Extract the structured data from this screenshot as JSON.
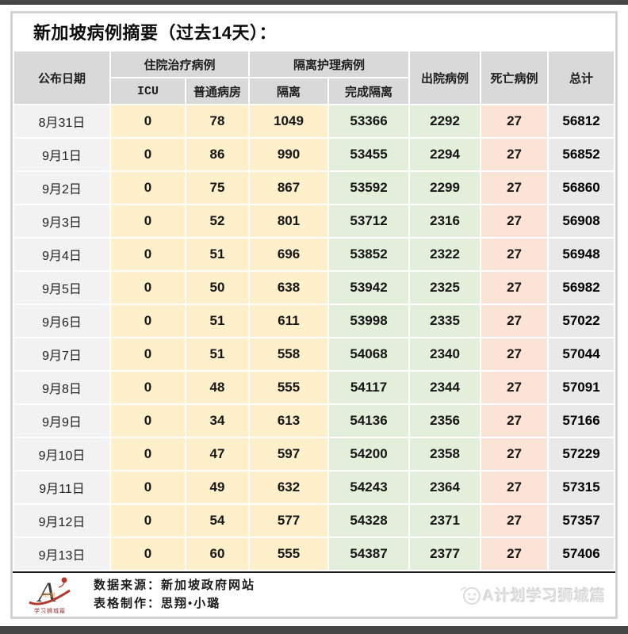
{
  "title": "新加坡病例摘要（过去14天）：",
  "colors": {
    "page_bar": "#454545",
    "frame_border": "#d4d4d4",
    "header_bg": "#d9d9d9",
    "date_bg": "#f2f2f2",
    "cell_yellow": "#fdf0ca",
    "cell_green": "#e4efdb",
    "cell_pink": "#fbe3d5",
    "total_bg": "#e9e9e9",
    "footer_divider": "#1a1a1a",
    "accent_red": "#b33a2e",
    "watermark_gray": "#dfdfdf"
  },
  "table": {
    "header": {
      "date": "公布日期",
      "hospitalized_group": "住院治疗病例",
      "isolation_group": "隔离护理病例",
      "icu": "ICU",
      "general_ward": "普通病房",
      "isolation": "隔离",
      "completed_isolation": "完成隔离",
      "discharged": "出院病例",
      "deaths": "死亡病例",
      "total": "总计"
    },
    "rows": [
      {
        "date": "8月31日",
        "values": [
          "0",
          "78",
          "1049",
          "53366",
          "2292",
          "27",
          "56812"
        ]
      },
      {
        "date": "9月1日",
        "values": [
          "0",
          "86",
          "990",
          "53455",
          "2294",
          "27",
          "56852"
        ]
      },
      {
        "date": "9月2日",
        "values": [
          "0",
          "75",
          "867",
          "53592",
          "2299",
          "27",
          "56860"
        ]
      },
      {
        "date": "9月3日",
        "values": [
          "0",
          "52",
          "801",
          "53712",
          "2316",
          "27",
          "56908"
        ]
      },
      {
        "date": "9月4日",
        "values": [
          "0",
          "51",
          "696",
          "53852",
          "2322",
          "27",
          "56948"
        ]
      },
      {
        "date": "9月5日",
        "values": [
          "0",
          "50",
          "638",
          "53942",
          "2325",
          "27",
          "56982"
        ]
      },
      {
        "date": "9月6日",
        "values": [
          "0",
          "51",
          "611",
          "53998",
          "2335",
          "27",
          "57022"
        ]
      },
      {
        "date": "9月7日",
        "values": [
          "0",
          "51",
          "558",
          "54068",
          "2340",
          "27",
          "57044"
        ]
      },
      {
        "date": "9月8日",
        "values": [
          "0",
          "48",
          "555",
          "54117",
          "2344",
          "27",
          "57091"
        ]
      },
      {
        "date": "9月9日",
        "values": [
          "0",
          "34",
          "613",
          "54136",
          "2356",
          "27",
          "57166"
        ]
      },
      {
        "date": "9月10日",
        "values": [
          "0",
          "47",
          "597",
          "54200",
          "2358",
          "27",
          "57229"
        ]
      },
      {
        "date": "9月11日",
        "values": [
          "0",
          "49",
          "632",
          "54243",
          "2364",
          "27",
          "57315"
        ]
      },
      {
        "date": "9月12日",
        "values": [
          "0",
          "54",
          "577",
          "54328",
          "2371",
          "27",
          "57357"
        ]
      },
      {
        "date": "9月13日",
        "values": [
          "0",
          "60",
          "555",
          "54387",
          "2377",
          "27",
          "57406"
        ]
      }
    ]
  },
  "footer": {
    "source_line": "数据来源：新加坡政府网站",
    "credit_line": "表格制作：思翔•小璐",
    "watermark": "A计划学习狮城篇",
    "logo": {
      "letter": "A",
      "badge": "A计划",
      "caption": "学习狮城篇"
    }
  },
  "chart_data": {
    "type": "table",
    "title": "新加坡病例摘要（过去14天）",
    "columns": [
      "公布日期",
      "住院治疗病例-ICU",
      "住院治疗病例-普通病房",
      "隔离护理病例-隔离",
      "隔离护理病例-完成隔离",
      "出院病例",
      "死亡病例",
      "总计"
    ],
    "rows": [
      [
        "8月31日",
        0,
        78,
        1049,
        53366,
        2292,
        27,
        56812
      ],
      [
        "9月1日",
        0,
        86,
        990,
        53455,
        2294,
        27,
        56852
      ],
      [
        "9月2日",
        0,
        75,
        867,
        53592,
        2299,
        27,
        56860
      ],
      [
        "9月3日",
        0,
        52,
        801,
        53712,
        2316,
        27,
        56908
      ],
      [
        "9月4日",
        0,
        51,
        696,
        53852,
        2322,
        27,
        56948
      ],
      [
        "9月5日",
        0,
        50,
        638,
        53942,
        2325,
        27,
        56982
      ],
      [
        "9月6日",
        0,
        51,
        611,
        53998,
        2335,
        27,
        57022
      ],
      [
        "9月7日",
        0,
        51,
        558,
        54068,
        2340,
        27,
        57044
      ],
      [
        "9月8日",
        0,
        48,
        555,
        54117,
        2344,
        27,
        57091
      ],
      [
        "9月9日",
        0,
        34,
        613,
        54136,
        2356,
        27,
        57166
      ],
      [
        "9月10日",
        0,
        47,
        597,
        54200,
        2358,
        27,
        57229
      ],
      [
        "9月11日",
        0,
        49,
        632,
        54243,
        2364,
        27,
        57315
      ],
      [
        "9月12日",
        0,
        54,
        577,
        54328,
        2371,
        27,
        57357
      ],
      [
        "9月13日",
        0,
        60,
        555,
        54387,
        2377,
        27,
        57406
      ]
    ]
  }
}
